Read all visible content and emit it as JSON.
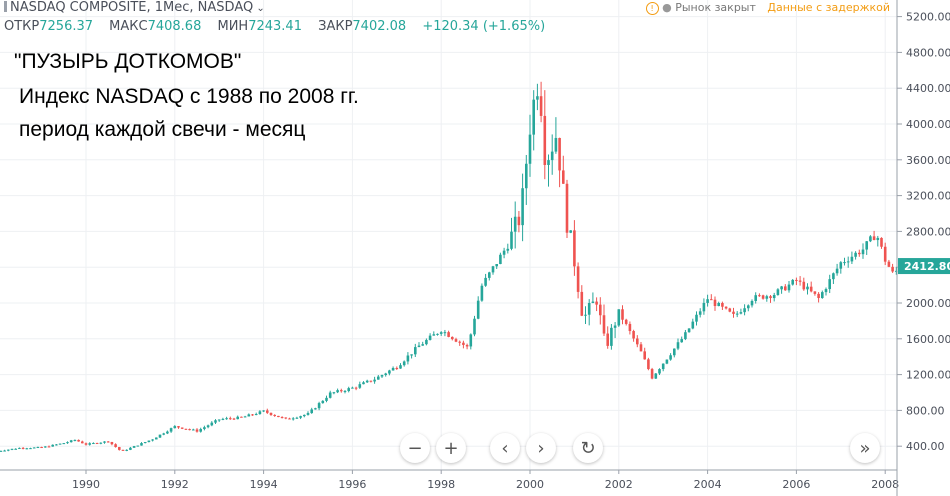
{
  "header": {
    "symbol_title": "NASDAQ COMPOSITE, 1Mес, NASDAQ",
    "ohlc": [
      {
        "label": "ОТКР",
        "value": "7256.37"
      },
      {
        "label": "МАКС",
        "value": "7408.68"
      },
      {
        "label": "МИН",
        "value": "7243.41"
      },
      {
        "label": "ЗАКР",
        "value": "7402.08"
      }
    ],
    "change": "+120.34 (+1.65%)",
    "market_status": "Рынок закрыт",
    "data_delay": "Данные с задержкой"
  },
  "annotation": {
    "line1": "\"ПУЗЫРЬ ДОТКОМОВ\"",
    "line2": "Индекс NASDAQ с 1988 по 2008 гг.",
    "line3": "период каждой свечи - месяц"
  },
  "colors": {
    "up": "#26a69a",
    "down": "#ef5350",
    "price_tag": "#26a69a"
  },
  "chart_data": {
    "type": "candlestick",
    "title": "NASDAQ COMPOSITE, 1Mес",
    "interval": "1 month",
    "x_range": [
      1988.0,
      2008.35
    ],
    "y_range": [
      0,
      5300
    ],
    "x_ticks": [
      "1990",
      "1992",
      "1994",
      "1996",
      "1998",
      "2000",
      "2002",
      "2004",
      "2006",
      "2008"
    ],
    "y_ticks": [
      "400.00",
      "800.00",
      "1200.00",
      "1600.00",
      "2000.00",
      "2400.00",
      "2800.00",
      "3200.00",
      "3600.00",
      "4000.00",
      "4400.00",
      "4800.00",
      "5200.00"
    ],
    "last_price": "2412.80",
    "close_anchors": [
      [
        1988.0,
        345
      ],
      [
        1988.5,
        380
      ],
      [
        1989.0,
        385
      ],
      [
        1989.5,
        435
      ],
      [
        1989.75,
        470
      ],
      [
        1990.0,
        420
      ],
      [
        1990.5,
        455
      ],
      [
        1990.8,
        340
      ],
      [
        1991.0,
        380
      ],
      [
        1991.5,
        480
      ],
      [
        1992.0,
        620
      ],
      [
        1992.5,
        570
      ],
      [
        1993.0,
        700
      ],
      [
        1993.5,
        720
      ],
      [
        1994.0,
        790
      ],
      [
        1994.5,
        700
      ],
      [
        1995.0,
        760
      ],
      [
        1995.5,
        990
      ],
      [
        1996.0,
        1050
      ],
      [
        1996.5,
        1150
      ],
      [
        1997.0,
        1290
      ],
      [
        1997.5,
        1520
      ],
      [
        1998.0,
        1700
      ],
      [
        1998.6,
        1500
      ],
      [
        1998.9,
        2180
      ],
      [
        1999.5,
        2650
      ],
      [
        1999.8,
        3000
      ],
      [
        2000.0,
        4000
      ],
      [
        2000.2,
        4570
      ],
      [
        2000.35,
        3600
      ],
      [
        2000.6,
        3900
      ],
      [
        2000.8,
        3000
      ],
      [
        2001.0,
        2470
      ],
      [
        2001.2,
        1820
      ],
      [
        2001.5,
        2050
      ],
      [
        2001.7,
        1500
      ],
      [
        2002.0,
        1900
      ],
      [
        2002.5,
        1450
      ],
      [
        2002.75,
        1170
      ],
      [
        2003.0,
        1330
      ],
      [
        2003.5,
        1650
      ],
      [
        2004.0,
        2050
      ],
      [
        2004.6,
        1850
      ],
      [
        2005.0,
        2050
      ],
      [
        2005.5,
        2100
      ],
      [
        2006.0,
        2250
      ],
      [
        2006.5,
        2050
      ],
      [
        2007.0,
        2450
      ],
      [
        2007.5,
        2600
      ],
      [
        2007.8,
        2780
      ],
      [
        2008.0,
        2480
      ],
      [
        2008.2,
        2300
      ],
      [
        2008.3,
        2412
      ]
    ]
  }
}
